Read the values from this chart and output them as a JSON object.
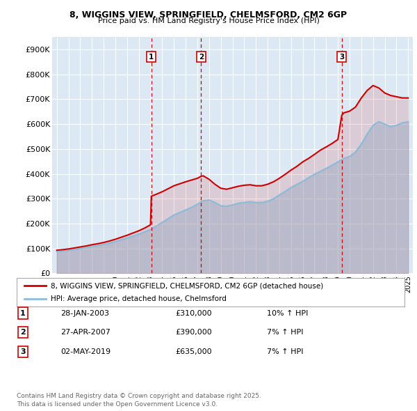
{
  "title_line1": "8, WIGGINS VIEW, SPRINGFIELD, CHELMSFORD, CM2 6GP",
  "title_line2": "Price paid vs. HM Land Registry's House Price Index (HPI)",
  "background_color": "#ffffff",
  "plot_bg_color": "#dce9f5",
  "grid_color": "#ffffff",
  "sale_color": "#cc0000",
  "hpi_color": "#8bbcda",
  "vline_color": "#cc0000",
  "ylim": [
    0,
    950000
  ],
  "yticks": [
    0,
    100000,
    200000,
    300000,
    400000,
    500000,
    600000,
    700000,
    800000,
    900000
  ],
  "ytick_labels": [
    "£0",
    "£100K",
    "£200K",
    "£300K",
    "£400K",
    "£500K",
    "£600K",
    "£700K",
    "£800K",
    "£900K"
  ],
  "sales_dates": [
    2003.07,
    2007.32,
    2019.33
  ],
  "sales_prices": [
    310000,
    390000,
    635000
  ],
  "sale_labels": [
    "1",
    "2",
    "3"
  ],
  "legend_sale_label": "8, WIGGINS VIEW, SPRINGFIELD, CHELMSFORD, CM2 6GP (detached house)",
  "legend_hpi_label": "HPI: Average price, detached house, Chelmsford",
  "table_rows": [
    [
      "1",
      "28-JAN-2003",
      "£310,000",
      "10% ↑ HPI"
    ],
    [
      "2",
      "27-APR-2007",
      "£390,000",
      "7% ↑ HPI"
    ],
    [
      "3",
      "02-MAY-2019",
      "£635,000",
      "7% ↑ HPI"
    ]
  ],
  "footer": "Contains HM Land Registry data © Crown copyright and database right 2025.\nThis data is licensed under the Open Government Licence v3.0.",
  "hpi_x": [
    1995.0,
    1995.5,
    1996.0,
    1996.5,
    1997.0,
    1997.5,
    1998.0,
    1998.5,
    1999.0,
    1999.5,
    2000.0,
    2000.5,
    2001.0,
    2001.5,
    2002.0,
    2002.5,
    2003.0,
    2003.5,
    2004.0,
    2004.5,
    2005.0,
    2005.5,
    2006.0,
    2006.5,
    2007.0,
    2007.5,
    2008.0,
    2008.5,
    2009.0,
    2009.5,
    2010.0,
    2010.5,
    2011.0,
    2011.5,
    2012.0,
    2012.5,
    2013.0,
    2013.5,
    2014.0,
    2014.5,
    2015.0,
    2015.5,
    2016.0,
    2016.5,
    2017.0,
    2017.5,
    2018.0,
    2018.5,
    2019.0,
    2019.5,
    2020.0,
    2020.5,
    2021.0,
    2021.5,
    2022.0,
    2022.5,
    2023.0,
    2023.5,
    2024.0,
    2024.5,
    2025.0
  ],
  "hpi_y": [
    88000,
    90000,
    93000,
    96000,
    100000,
    104000,
    108000,
    112000,
    116000,
    122000,
    128000,
    135000,
    142000,
    150000,
    158000,
    167000,
    176000,
    190000,
    205000,
    220000,
    235000,
    245000,
    255000,
    265000,
    278000,
    292000,
    295000,
    285000,
    272000,
    270000,
    275000,
    282000,
    285000,
    288000,
    285000,
    285000,
    290000,
    300000,
    315000,
    330000,
    345000,
    358000,
    370000,
    385000,
    398000,
    410000,
    422000,
    435000,
    448000,
    462000,
    470000,
    488000,
    520000,
    560000,
    595000,
    610000,
    600000,
    590000,
    595000,
    605000,
    610000
  ],
  "prop_x": [
    1995.0,
    1995.5,
    1996.0,
    1996.5,
    1997.0,
    1997.5,
    1998.0,
    1998.5,
    1999.0,
    1999.5,
    2000.0,
    2000.5,
    2001.0,
    2001.5,
    2002.0,
    2002.5,
    2003.0,
    2003.07,
    2003.5,
    2004.0,
    2004.5,
    2005.0,
    2005.5,
    2006.0,
    2006.5,
    2007.0,
    2007.32,
    2007.5,
    2008.0,
    2008.5,
    2009.0,
    2009.5,
    2010.0,
    2010.5,
    2011.0,
    2011.5,
    2012.0,
    2012.5,
    2013.0,
    2013.5,
    2014.0,
    2014.5,
    2015.0,
    2015.5,
    2016.0,
    2016.5,
    2017.0,
    2017.5,
    2018.0,
    2018.5,
    2019.0,
    2019.33,
    2019.5,
    2020.0,
    2020.5,
    2021.0,
    2021.5,
    2022.0,
    2022.5,
    2023.0,
    2023.5,
    2024.0,
    2024.5,
    2025.0
  ],
  "prop_y": [
    93000,
    95000,
    98000,
    102000,
    106000,
    110000,
    115000,
    119000,
    124000,
    130000,
    137000,
    145000,
    153000,
    162000,
    171000,
    182000,
    195000,
    310000,
    318000,
    328000,
    340000,
    352000,
    360000,
    368000,
    375000,
    382000,
    390000,
    392000,
    378000,
    358000,
    342000,
    338000,
    344000,
    350000,
    354000,
    356000,
    352000,
    352000,
    358000,
    368000,
    382000,
    398000,
    415000,
    430000,
    448000,
    462000,
    478000,
    495000,
    508000,
    522000,
    538000,
    635000,
    645000,
    652000,
    668000,
    705000,
    735000,
    755000,
    745000,
    725000,
    715000,
    710000,
    705000,
    705000
  ]
}
